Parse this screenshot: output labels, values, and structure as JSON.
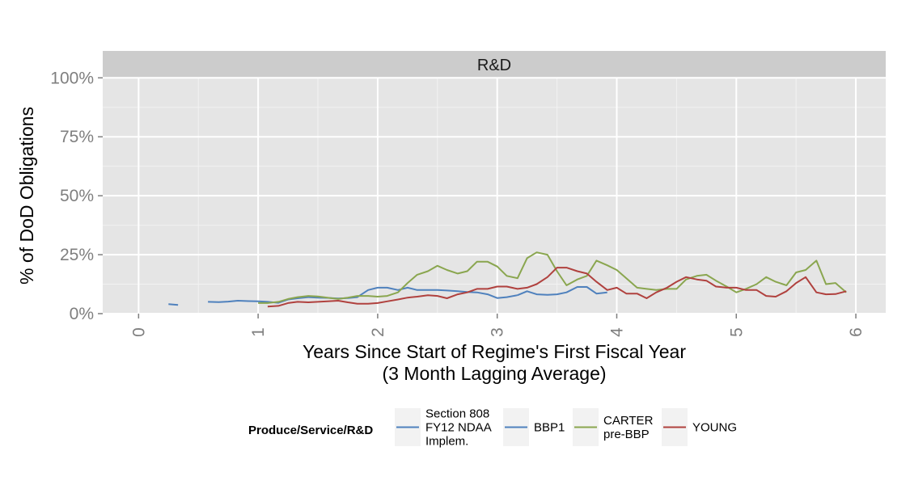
{
  "chart_data": {
    "type": "line",
    "facet_label": "R&D",
    "xlabel": "Years Since Start of Regime's First Fiscal Year",
    "xlabel_sub": "(3 Month Lagging Average)",
    "ylabel": "% of DoD Obligations",
    "xlim": [
      -0.3,
      6.25
    ],
    "ylim": [
      0,
      1.0
    ],
    "x_ticks": [
      "0",
      "1",
      "2",
      "3",
      "4",
      "5",
      "6"
    ],
    "x_tick_values": [
      0,
      1,
      2,
      3,
      4,
      5,
      6
    ],
    "y_ticks": [
      "0%",
      "25%",
      "50%",
      "75%",
      "100%"
    ],
    "y_tick_values": [
      0,
      0.25,
      0.5,
      0.75,
      1.0
    ],
    "grid": true,
    "legend_position": "bottom",
    "legend_title": "Produce/Service/R&D",
    "legend": [
      {
        "key": "s808",
        "lines": [
          "Section 808",
          "FY12 NDAA",
          "Implem."
        ],
        "color": "#4f81bd"
      },
      {
        "key": "bbp1",
        "lines": [
          "BBP1"
        ],
        "color": "#4f81bd"
      },
      {
        "key": "carter",
        "lines": [
          "CARTER",
          "pre-BBP"
        ],
        "color": "#8aa64f"
      },
      {
        "key": "young",
        "lines": [
          "YOUNG"
        ],
        "color": "#b0413e"
      }
    ],
    "series": [
      {
        "name": "Section 808 FY12 NDAA Implem.",
        "color": "#4f81bd",
        "segments": [
          [
            [
              0.25,
              0.04
            ],
            [
              0.33,
              0.037
            ]
          ],
          [
            [
              0.58,
              0.05
            ],
            [
              0.67,
              0.049
            ],
            [
              0.75,
              0.051
            ],
            [
              0.83,
              0.055
            ],
            [
              0.92,
              0.053
            ],
            [
              1.0,
              0.052
            ],
            [
              1.08,
              0.05
            ],
            [
              1.17,
              0.046
            ],
            [
              1.25,
              0.06
            ],
            [
              1.33,
              0.065
            ],
            [
              1.42,
              0.07
            ],
            [
              1.5,
              0.068
            ],
            [
              1.58,
              0.067
            ],
            [
              1.67,
              0.064
            ],
            [
              1.75,
              0.066
            ],
            [
              1.83,
              0.07
            ],
            [
              1.92,
              0.1
            ],
            [
              2.0,
              0.11
            ],
            [
              2.08,
              0.11
            ],
            [
              2.17,
              0.1
            ],
            [
              2.25,
              0.11
            ],
            [
              2.33,
              0.1
            ],
            [
              2.42,
              0.1
            ],
            [
              2.5,
              0.1
            ],
            [
              2.58,
              0.098
            ],
            [
              2.67,
              0.095
            ],
            [
              2.75,
              0.092
            ],
            [
              2.83,
              0.09
            ],
            [
              2.92,
              0.082
            ],
            [
              3.0,
              0.066
            ],
            [
              3.08,
              0.07
            ],
            [
              3.17,
              0.078
            ]
          ]
        ]
      },
      {
        "name": "BBP1",
        "color": "#4f81bd",
        "segments": [
          [
            [
              3.17,
              0.078
            ],
            [
              3.25,
              0.095
            ],
            [
              3.33,
              0.082
            ],
            [
              3.42,
              0.08
            ],
            [
              3.5,
              0.082
            ],
            [
              3.58,
              0.09
            ],
            [
              3.67,
              0.113
            ],
            [
              3.75,
              0.113
            ],
            [
              3.83,
              0.085
            ],
            [
              3.92,
              0.09
            ]
          ]
        ]
      },
      {
        "name": "CARTER pre-BBP",
        "color": "#8aa64f",
        "segments": [
          [
            [
              1.0,
              0.045
            ],
            [
              1.08,
              0.045
            ],
            [
              1.17,
              0.05
            ],
            [
              1.25,
              0.062
            ],
            [
              1.33,
              0.07
            ],
            [
              1.42,
              0.075
            ],
            [
              1.5,
              0.073
            ],
            [
              1.58,
              0.068
            ],
            [
              1.67,
              0.062
            ],
            [
              1.75,
              0.068
            ],
            [
              1.83,
              0.075
            ],
            [
              1.92,
              0.075
            ],
            [
              2.0,
              0.072
            ],
            [
              2.08,
              0.075
            ],
            [
              2.17,
              0.09
            ],
            [
              2.25,
              0.13
            ],
            [
              2.33,
              0.165
            ],
            [
              2.42,
              0.18
            ],
            [
              2.5,
              0.203
            ],
            [
              2.58,
              0.185
            ],
            [
              2.67,
              0.17
            ],
            [
              2.75,
              0.18
            ],
            [
              2.83,
              0.22
            ],
            [
              2.92,
              0.22
            ],
            [
              3.0,
              0.2
            ],
            [
              3.08,
              0.16
            ],
            [
              3.17,
              0.15
            ],
            [
              3.25,
              0.235
            ],
            [
              3.33,
              0.26
            ],
            [
              3.42,
              0.25
            ],
            [
              3.5,
              0.18
            ],
            [
              3.58,
              0.12
            ],
            [
              3.67,
              0.145
            ],
            [
              3.75,
              0.16
            ],
            [
              3.83,
              0.225
            ],
            [
              3.92,
              0.205
            ],
            [
              4.0,
              0.185
            ],
            [
              4.08,
              0.15
            ],
            [
              4.17,
              0.11
            ],
            [
              4.25,
              0.105
            ],
            [
              4.33,
              0.1
            ],
            [
              4.42,
              0.105
            ],
            [
              4.5,
              0.105
            ],
            [
              4.58,
              0.145
            ],
            [
              4.67,
              0.16
            ],
            [
              4.75,
              0.165
            ],
            [
              4.83,
              0.14
            ],
            [
              4.92,
              0.115
            ],
            [
              5.0,
              0.09
            ],
            [
              5.08,
              0.105
            ],
            [
              5.17,
              0.125
            ],
            [
              5.25,
              0.155
            ],
            [
              5.33,
              0.135
            ],
            [
              5.42,
              0.12
            ],
            [
              5.5,
              0.175
            ],
            [
              5.58,
              0.185
            ],
            [
              5.67,
              0.225
            ],
            [
              5.75,
              0.125
            ],
            [
              5.83,
              0.13
            ],
            [
              5.92,
              0.09
            ]
          ]
        ]
      },
      {
        "name": "YOUNG",
        "color": "#b0413e",
        "segments": [
          [
            [
              1.08,
              0.03
            ],
            [
              1.17,
              0.033
            ],
            [
              1.25,
              0.045
            ],
            [
              1.33,
              0.05
            ],
            [
              1.42,
              0.048
            ],
            [
              1.5,
              0.05
            ],
            [
              1.58,
              0.052
            ],
            [
              1.67,
              0.055
            ],
            [
              1.75,
              0.048
            ],
            [
              1.83,
              0.042
            ],
            [
              1.92,
              0.042
            ],
            [
              2.0,
              0.045
            ],
            [
              2.08,
              0.052
            ],
            [
              2.17,
              0.06
            ],
            [
              2.25,
              0.068
            ],
            [
              2.33,
              0.072
            ],
            [
              2.42,
              0.078
            ],
            [
              2.5,
              0.075
            ],
            [
              2.58,
              0.065
            ],
            [
              2.67,
              0.082
            ],
            [
              2.75,
              0.09
            ],
            [
              2.83,
              0.105
            ],
            [
              2.92,
              0.105
            ],
            [
              3.0,
              0.115
            ],
            [
              3.08,
              0.115
            ],
            [
              3.17,
              0.105
            ],
            [
              3.25,
              0.11
            ],
            [
              3.33,
              0.125
            ],
            [
              3.42,
              0.155
            ],
            [
              3.5,
              0.195
            ],
            [
              3.58,
              0.195
            ],
            [
              3.67,
              0.18
            ],
            [
              3.75,
              0.17
            ],
            [
              3.83,
              0.135
            ],
            [
              3.92,
              0.1
            ],
            [
              4.0,
              0.11
            ],
            [
              4.08,
              0.085
            ],
            [
              4.17,
              0.085
            ],
            [
              4.25,
              0.065
            ],
            [
              4.33,
              0.09
            ],
            [
              4.42,
              0.11
            ],
            [
              4.5,
              0.135
            ],
            [
              4.58,
              0.155
            ],
            [
              4.67,
              0.145
            ],
            [
              4.75,
              0.14
            ],
            [
              4.83,
              0.115
            ],
            [
              4.92,
              0.11
            ],
            [
              5.0,
              0.11
            ],
            [
              5.08,
              0.1
            ],
            [
              5.17,
              0.1
            ],
            [
              5.25,
              0.075
            ],
            [
              5.33,
              0.072
            ],
            [
              5.42,
              0.095
            ],
            [
              5.5,
              0.13
            ],
            [
              5.58,
              0.155
            ],
            [
              5.67,
              0.09
            ],
            [
              5.75,
              0.082
            ],
            [
              5.83,
              0.083
            ],
            [
              5.92,
              0.095
            ]
          ]
        ]
      }
    ]
  }
}
